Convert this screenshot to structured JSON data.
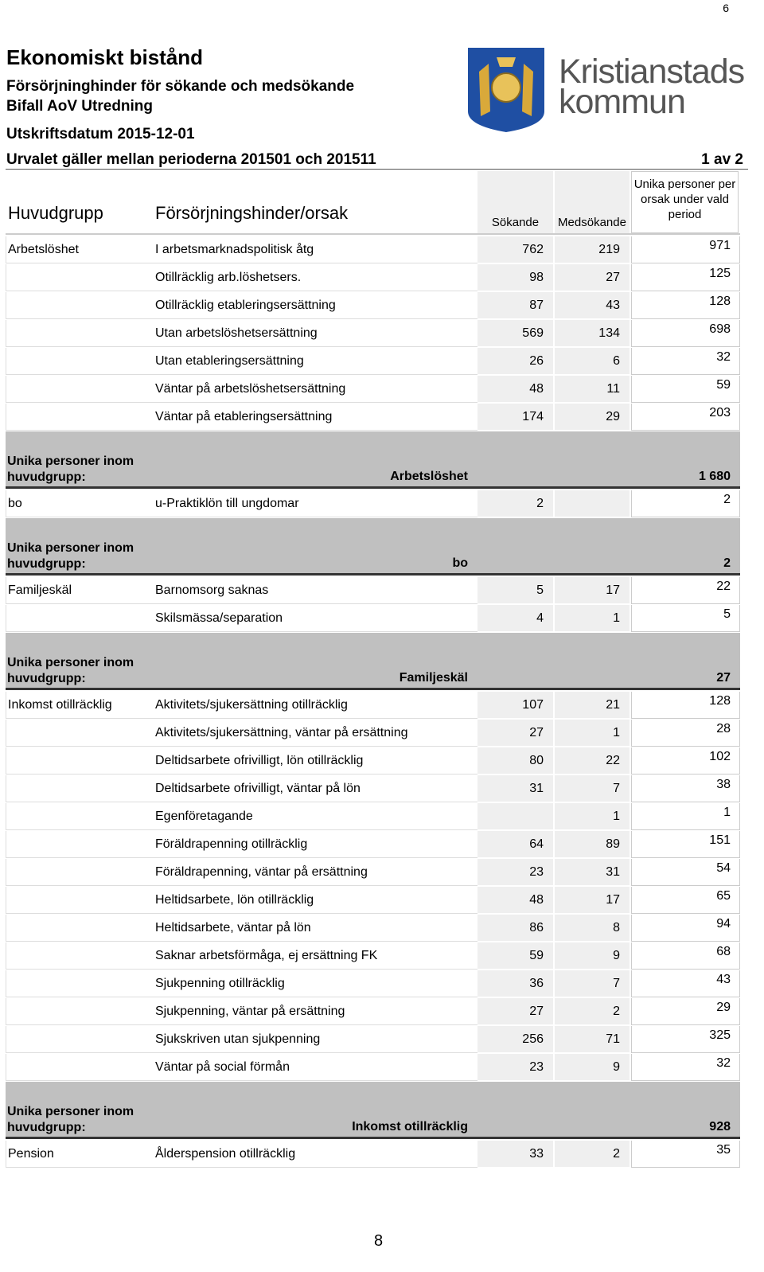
{
  "page_number_top": "6",
  "header": {
    "title": "Ekonomiskt bistånd",
    "subtitle": "Försörjninghinder för sökande och medsökande",
    "subtitle2": "Bifall AoV Utredning",
    "print_date": "Utskriftsdatum 2015-12-01",
    "selection": "Urvalet gäller mellan perioderna 201501 och 201511",
    "page": "1 av 2"
  },
  "logo": {
    "line1": "Kristianstads",
    "line2": "kommun"
  },
  "table": {
    "columns": [
      "Huvudgrupp",
      "Försörjningshinder/orsak",
      "Sökande",
      "Medsökande",
      "Unika personer per orsak under vald period"
    ],
    "summary_label": "Unika personer inom huvudgrupp:",
    "groups": [
      {
        "name": "Arbetslöshet",
        "total": "1 680",
        "rows": [
          [
            "I arbetsmarknadspolitisk åtg",
            762,
            219,
            971
          ],
          [
            "Otillräcklig arb.löshetsers.",
            98,
            27,
            125
          ],
          [
            "Otillräcklig etableringsersättning",
            87,
            43,
            128
          ],
          [
            "Utan arbetslöshetsersättning",
            569,
            134,
            698
          ],
          [
            "Utan etableringsersättning",
            26,
            6,
            32
          ],
          [
            "Väntar på arbetslöshetsersättning",
            48,
            11,
            59
          ],
          [
            "Väntar på etableringsersättning",
            174,
            29,
            203
          ]
        ]
      },
      {
        "name": "bo",
        "total": 2,
        "rows": [
          [
            "u-Praktiklön till ungdomar",
            2,
            null,
            2
          ]
        ]
      },
      {
        "name": "Familjeskäl",
        "total": 27,
        "rows": [
          [
            "Barnomsorg saknas",
            5,
            17,
            22
          ],
          [
            "Skilsmässa/separation",
            4,
            1,
            5
          ]
        ]
      },
      {
        "name": "Inkomst otillräcklig",
        "total": 928,
        "rows": [
          [
            "Aktivitets/sjukersättning otillräcklig",
            107,
            21,
            128
          ],
          [
            "Aktivitets/sjukersättning, väntar på ersättning",
            27,
            1,
            28
          ],
          [
            "Deltidsarbete ofrivilligt, lön otillräcklig",
            80,
            22,
            102
          ],
          [
            "Deltidsarbete ofrivilligt, väntar på lön",
            31,
            7,
            38
          ],
          [
            "Egenföretagande",
            null,
            1,
            1
          ],
          [
            "Föräldrapenning otillräcklig",
            64,
            89,
            151
          ],
          [
            "Föräldrapenning, väntar på ersättning",
            23,
            31,
            54
          ],
          [
            "Heltidsarbete, lön otillräcklig",
            48,
            17,
            65
          ],
          [
            "Heltidsarbete, väntar på lön",
            86,
            8,
            94
          ],
          [
            "Saknar arbetsförmåga, ej ersättning FK",
            59,
            9,
            68
          ],
          [
            "Sjukpenning otillräcklig",
            36,
            7,
            43
          ],
          [
            "Sjukpenning, väntar på ersättning",
            27,
            2,
            29
          ],
          [
            "Sjukskriven utan sjukpenning",
            256,
            71,
            325
          ],
          [
            "Väntar på social förmån",
            23,
            9,
            32
          ]
        ]
      },
      {
        "name": "Pension",
        "rows": [
          [
            "Ålderspension otillräcklig",
            33,
            2,
            35
          ]
        ]
      }
    ]
  },
  "page_number_bottom": "8"
}
